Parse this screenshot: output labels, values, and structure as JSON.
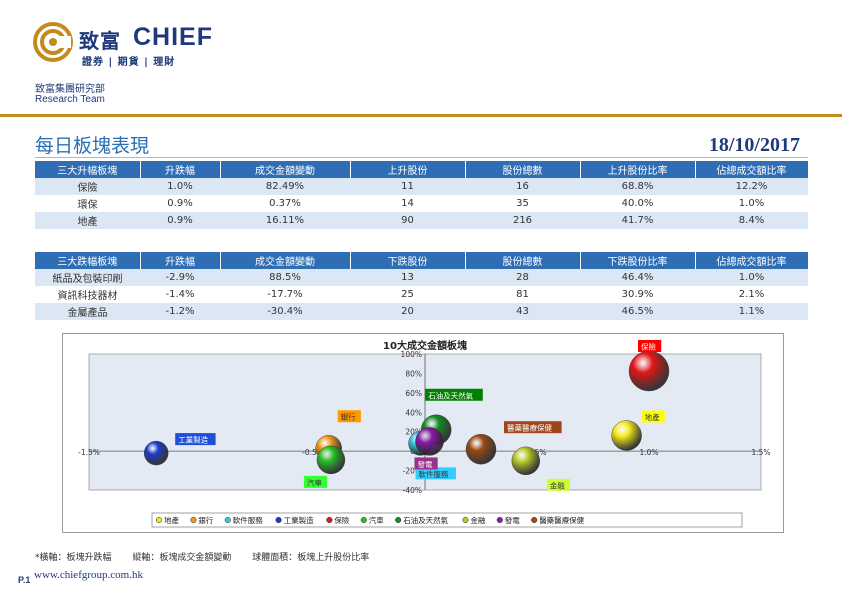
{
  "brand": {
    "name_cn": "致富",
    "name_en": "CHIEF",
    "tagline": "證券 | 期貨 | 理財",
    "dept_cn": "致富集團研究部",
    "dept_en": "Research Team",
    "accent": "#c58a1e",
    "primary": "#1f3a7a"
  },
  "page": {
    "title": "每日板塊表現",
    "date": "18/10/2017",
    "footnote_x": "*橫軸：板塊升跌幅",
    "footnote_y": "縱軸：板塊成交金額變動",
    "footnote_size": "球體面積：板塊上升股份比率",
    "page_number": "P.1",
    "website": "www.chiefgroup.com.hk"
  },
  "gainers": {
    "headers": [
      "三大升幅板塊",
      "升跌幅",
      "成交金額變動",
      "上升股份",
      "股份總數",
      "上升股份比率",
      "佔總成交額比率"
    ],
    "rows": [
      [
        "保險",
        "1.0%",
        "82.49%",
        "11",
        "16",
        "68.8%",
        "12.2%"
      ],
      [
        "環保",
        "0.9%",
        "0.37%",
        "14",
        "35",
        "40.0%",
        "1.0%"
      ],
      [
        "地產",
        "0.9%",
        "16.11%",
        "90",
        "216",
        "41.7%",
        "8.4%"
      ]
    ]
  },
  "losers": {
    "headers": [
      "三大跌幅板塊",
      "升跌幅",
      "成交金額變動",
      "下跌股份",
      "股份總數",
      "下跌股份比率",
      "佔總成交額比率"
    ],
    "rows": [
      [
        "紙品及包裝印刷",
        "-2.9%",
        "88.5%",
        "13",
        "28",
        "46.4%",
        "1.0%"
      ],
      [
        "資訊科技器材",
        "-1.4%",
        "-17.7%",
        "25",
        "81",
        "30.9%",
        "2.1%"
      ],
      [
        "金屬產品",
        "-1.2%",
        "-30.4%",
        "20",
        "43",
        "46.5%",
        "1.1%"
      ]
    ]
  },
  "chart_data": {
    "type": "scatter",
    "title": "10大成交金額板塊",
    "xlim": [
      -1.5,
      1.5
    ],
    "ylim": [
      -40,
      100
    ],
    "x_ticks": [
      "-1.5%",
      "-0.5%",
      "0.0%",
      "0.5%",
      "1.0%",
      "1.5%"
    ],
    "x_tick_values": [
      -1.5,
      -0.5,
      0.0,
      0.5,
      1.0,
      1.5
    ],
    "y_ticks": [
      "100%",
      "80%",
      "60%",
      "40%",
      "20%",
      "0%",
      "-20%",
      "-40%"
    ],
    "y_tick_values": [
      100,
      80,
      60,
      40,
      20,
      0,
      -20,
      -40
    ],
    "legend_position": "bottom",
    "series": [
      {
        "name": "地產",
        "x": 0.9,
        "y": 16.11,
        "color": "#f3ea1a",
        "label_color": "#ffff00",
        "label_text_color": "#333333"
      },
      {
        "name": "銀行",
        "x": -0.43,
        "y": 3,
        "color": "#f09a1a",
        "label_color": "#ff9900",
        "label_text_color": "#333333"
      },
      {
        "name": "軟件服務",
        "x": -0.02,
        "y": 8,
        "color": "#2ec8e0",
        "label_color": "#33ccff",
        "label_text_color": "#333333"
      },
      {
        "name": "工業製造",
        "x": -1.2,
        "y": -2,
        "color": "#1b3cc9",
        "label_color": "#1f4fd8",
        "label_text_color": "#ffffff"
      },
      {
        "name": "保險",
        "x": 1.0,
        "y": 82.49,
        "color": "#e21616",
        "label_color": "#ff0000",
        "label_text_color": "#ffffff"
      },
      {
        "name": "汽車",
        "x": -0.42,
        "y": -9,
        "color": "#27c02b",
        "label_color": "#33ff33",
        "label_text_color": "#333333"
      },
      {
        "name": "石油及天然氣",
        "x": 0.05,
        "y": 22,
        "color": "#168a26",
        "label_color": "#008000",
        "label_text_color": "#ffffff"
      },
      {
        "name": "金融",
        "x": 0.45,
        "y": -10,
        "color": "#b7c928",
        "label_color": "#ccff33",
        "label_text_color": "#333333"
      },
      {
        "name": "發電",
        "x": 0.02,
        "y": 10,
        "color": "#8a1aa8",
        "label_color": "#99338a",
        "label_text_color": "#ffffff"
      },
      {
        "name": "醫藥醫療保健",
        "x": 0.25,
        "y": 2,
        "color": "#9a4a12",
        "label_color": "#a0451a",
        "label_text_color": "#ffffff"
      }
    ]
  }
}
